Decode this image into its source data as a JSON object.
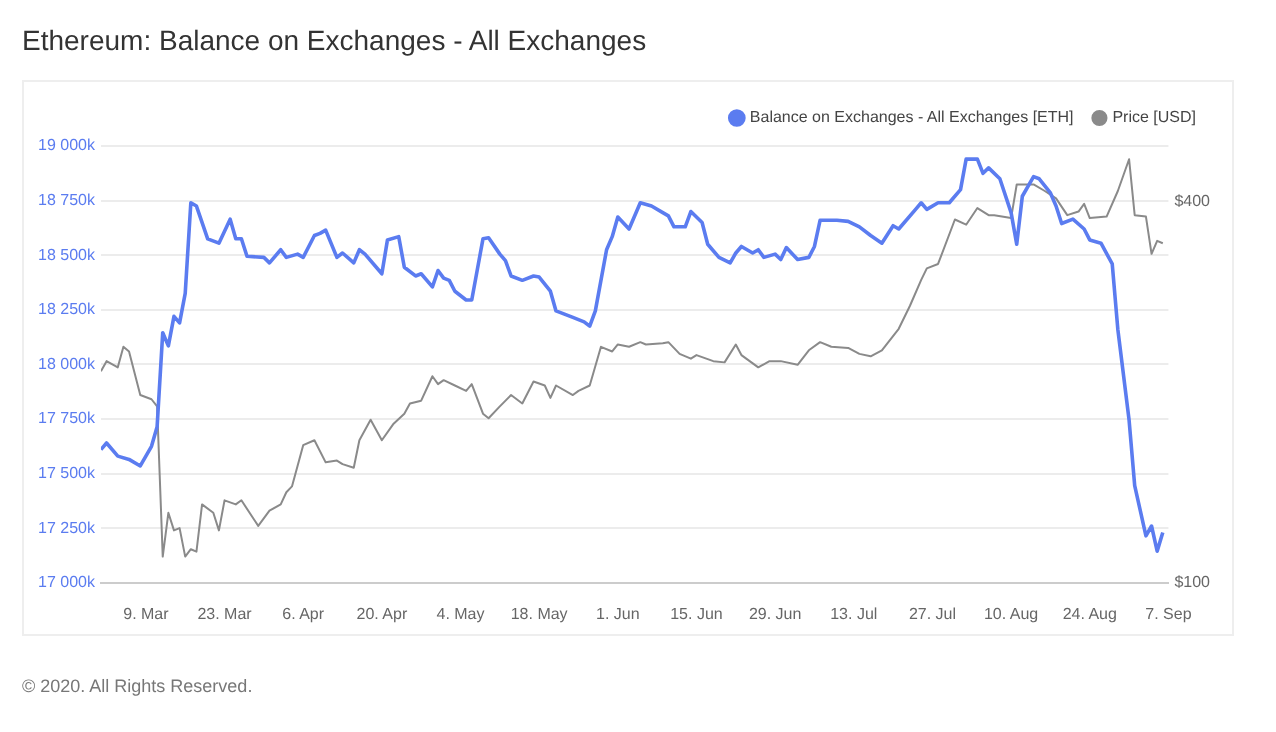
{
  "chart_data": {
    "type": "line",
    "title": "Ethereum: Balance on Exchanges - All Exchanges",
    "legend": "top right",
    "grid": "y",
    "marker": "none",
    "line_style": "solid",
    "log": "y2",
    "annotations": [
      "© 2020. All Rights Reserved."
    ],
    "xlim": [
      "2020-03-01",
      "2020-09-07"
    ],
    "xticks": [
      {
        "value": "2020-03-09",
        "label": "9. Mar"
      },
      {
        "value": "2020-03-23",
        "label": "23. Mar"
      },
      {
        "value": "2020-04-06",
        "label": "6. Apr"
      },
      {
        "value": "2020-04-20",
        "label": "20. Apr"
      },
      {
        "value": "2020-05-04",
        "label": "4. May"
      },
      {
        "value": "2020-05-18",
        "label": "18. May"
      },
      {
        "value": "2020-06-01",
        "label": "1. Jun"
      },
      {
        "value": "2020-06-15",
        "label": "15. Jun"
      },
      {
        "value": "2020-06-29",
        "label": "29. Jun"
      },
      {
        "value": "2020-07-13",
        "label": "13. Jul"
      },
      {
        "value": "2020-07-27",
        "label": "27. Jul"
      },
      {
        "value": "2020-08-10",
        "label": "10. Aug"
      },
      {
        "value": "2020-08-24",
        "label": "24. Aug"
      },
      {
        "value": "2020-09-07",
        "label": "7. Sep"
      }
    ],
    "ylim": [
      17000000,
      19000000
    ],
    "yticks": [
      {
        "value": 17000000,
        "label": "17 000k"
      },
      {
        "value": 17250000,
        "label": "17 250k"
      },
      {
        "value": 17500000,
        "label": "17 500k"
      },
      {
        "value": 17750000,
        "label": "17 750k"
      },
      {
        "value": 18000000,
        "label": "18 000k"
      },
      {
        "value": 18250000,
        "label": "18 250k"
      },
      {
        "value": 18500000,
        "label": "18 500k"
      },
      {
        "value": 18750000,
        "label": "18 750k"
      },
      {
        "value": 19000000,
        "label": "19 000k"
      }
    ],
    "y2lim": [
      100,
      490
    ],
    "y2ticks": [
      {
        "value": 100,
        "label": "$100"
      },
      {
        "value": 400,
        "label": "$400"
      }
    ],
    "series": [
      {
        "name": "Balance on Exchanges - All Exchanges [ETH]",
        "color": "#5b7cf0",
        "x": [
          "2020-03-01",
          "2020-03-02",
          "2020-03-04",
          "2020-03-06",
          "2020-03-08",
          "2020-03-09",
          "2020-03-10",
          "2020-03-11",
          "2020-03-12",
          "2020-03-13",
          "2020-03-14",
          "2020-03-15",
          "2020-03-16",
          "2020-03-17",
          "2020-03-18",
          "2020-03-20",
          "2020-03-22",
          "2020-03-24",
          "2020-03-25",
          "2020-03-26",
          "2020-03-27",
          "2020-03-30",
          "2020-03-31",
          "2020-04-02",
          "2020-04-03",
          "2020-04-05",
          "2020-04-06",
          "2020-04-08",
          "2020-04-09",
          "2020-04-10",
          "2020-04-12",
          "2020-04-13",
          "2020-04-15",
          "2020-04-16",
          "2020-04-17",
          "2020-04-20",
          "2020-04-21",
          "2020-04-23",
          "2020-04-24",
          "2020-04-26",
          "2020-04-27",
          "2020-04-29",
          "2020-04-30",
          "2020-05-01",
          "2020-05-02",
          "2020-05-03",
          "2020-05-05",
          "2020-05-06",
          "2020-05-08",
          "2020-05-09",
          "2020-05-11",
          "2020-05-12",
          "2020-05-13",
          "2020-05-15",
          "2020-05-17",
          "2020-05-18",
          "2020-05-20",
          "2020-05-21",
          "2020-05-24",
          "2020-05-26",
          "2020-05-27",
          "2020-05-28",
          "2020-05-30",
          "2020-05-31",
          "2020-06-01",
          "2020-06-03",
          "2020-06-05",
          "2020-06-07",
          "2020-06-09",
          "2020-06-10",
          "2020-06-11",
          "2020-06-13",
          "2020-06-14",
          "2020-06-16",
          "2020-06-17",
          "2020-06-19",
          "2020-06-21",
          "2020-06-22",
          "2020-06-23",
          "2020-06-25",
          "2020-06-26",
          "2020-06-27",
          "2020-06-29",
          "2020-06-30",
          "2020-07-01",
          "2020-07-03",
          "2020-07-05",
          "2020-07-06",
          "2020-07-07",
          "2020-07-10",
          "2020-07-12",
          "2020-07-14",
          "2020-07-16",
          "2020-07-18",
          "2020-07-20",
          "2020-07-21",
          "2020-07-24",
          "2020-07-25",
          "2020-07-26",
          "2020-07-28",
          "2020-07-30",
          "2020-08-01",
          "2020-08-02",
          "2020-08-04",
          "2020-08-05",
          "2020-08-06",
          "2020-08-08",
          "2020-08-10",
          "2020-08-11",
          "2020-08-12",
          "2020-08-14",
          "2020-08-15",
          "2020-08-17",
          "2020-08-18",
          "2020-08-19",
          "2020-08-21",
          "2020-08-23",
          "2020-08-24",
          "2020-08-26",
          "2020-08-28",
          "2020-08-29",
          "2020-08-31",
          "2020-09-01",
          "2020-09-03",
          "2020-09-04",
          "2020-09-05",
          "2020-09-06"
        ],
        "values": [
          17610000,
          17640000,
          17580000,
          17565000,
          17535000,
          17580000,
          17625000,
          17715000,
          18145000,
          18085000,
          18220000,
          18190000,
          18325000,
          18740000,
          18725000,
          18575000,
          18555000,
          18665000,
          18575000,
          18575000,
          18495000,
          18490000,
          18465000,
          18525000,
          18490000,
          18505000,
          18490000,
          18590000,
          18600000,
          18615000,
          18490000,
          18510000,
          18465000,
          18525000,
          18505000,
          18415000,
          18570000,
          18585000,
          18445000,
          18405000,
          18415000,
          18355000,
          18430000,
          18395000,
          18385000,
          18335000,
          18295000,
          18295000,
          18575000,
          18580000,
          18505000,
          18475000,
          18405000,
          18385000,
          18405000,
          18400000,
          18335000,
          18245000,
          18215000,
          18195000,
          18175000,
          18245000,
          18525000,
          18585000,
          18675000,
          18620000,
          18740000,
          18725000,
          18695000,
          18680000,
          18630000,
          18630000,
          18700000,
          18650000,
          18550000,
          18490000,
          18465000,
          18510000,
          18540000,
          18510000,
          18525000,
          18490000,
          18505000,
          18480000,
          18535000,
          18480000,
          18490000,
          18540000,
          18660000,
          18660000,
          18655000,
          18630000,
          18590000,
          18555000,
          18635000,
          18620000,
          18710000,
          18740000,
          18710000,
          18740000,
          18740000,
          18800000,
          18940000,
          18940000,
          18875000,
          18900000,
          18850000,
          18695000,
          18550000,
          18770000,
          18860000,
          18850000,
          18785000,
          18725000,
          18645000,
          18665000,
          18620000,
          18570000,
          18555000,
          18460000,
          18160000,
          17745000,
          17445000,
          17215000,
          17260000,
          17145000,
          17230000
        ]
      },
      {
        "name": "Price [USD]",
        "color": "#8a8a8a",
        "axis": "y2",
        "x": [
          "2020-03-01",
          "2020-03-02",
          "2020-03-04",
          "2020-03-05",
          "2020-03-06",
          "2020-03-08",
          "2020-03-10",
          "2020-03-11",
          "2020-03-12",
          "2020-03-13",
          "2020-03-14",
          "2020-03-15",
          "2020-03-16",
          "2020-03-17",
          "2020-03-18",
          "2020-03-19",
          "2020-03-21",
          "2020-03-22",
          "2020-03-23",
          "2020-03-25",
          "2020-03-26",
          "2020-03-29",
          "2020-03-31",
          "2020-04-02",
          "2020-04-03",
          "2020-04-04",
          "2020-04-06",
          "2020-04-08",
          "2020-04-10",
          "2020-04-12",
          "2020-04-13",
          "2020-04-15",
          "2020-04-16",
          "2020-04-18",
          "2020-04-20",
          "2020-04-22",
          "2020-04-24",
          "2020-04-25",
          "2020-04-27",
          "2020-04-29",
          "2020-04-30",
          "2020-05-01",
          "2020-05-03",
          "2020-05-05",
          "2020-05-06",
          "2020-05-08",
          "2020-05-09",
          "2020-05-11",
          "2020-05-13",
          "2020-05-15",
          "2020-05-17",
          "2020-05-19",
          "2020-05-20",
          "2020-05-21",
          "2020-05-24",
          "2020-05-25",
          "2020-05-27",
          "2020-05-29",
          "2020-05-31",
          "2020-06-01",
          "2020-06-03",
          "2020-06-05",
          "2020-06-06",
          "2020-06-09",
          "2020-06-10",
          "2020-06-12",
          "2020-06-14",
          "2020-06-15",
          "2020-06-18",
          "2020-06-20",
          "2020-06-22",
          "2020-06-23",
          "2020-06-26",
          "2020-06-28",
          "2020-06-30",
          "2020-07-03",
          "2020-07-05",
          "2020-07-07",
          "2020-07-09",
          "2020-07-12",
          "2020-07-14",
          "2020-07-16",
          "2020-07-18",
          "2020-07-21",
          "2020-07-23",
          "2020-07-25",
          "2020-07-26",
          "2020-07-28",
          "2020-07-31",
          "2020-08-02",
          "2020-08-04",
          "2020-08-06",
          "2020-08-07",
          "2020-08-10",
          "2020-08-11",
          "2020-08-14",
          "2020-08-16",
          "2020-08-18",
          "2020-08-20",
          "2020-08-22",
          "2020-08-23",
          "2020-08-24",
          "2020-08-27",
          "2020-08-29",
          "2020-08-31",
          "2020-09-01",
          "2020-09-03",
          "2020-09-04",
          "2020-09-05",
          "2020-09-06"
        ],
        "values": [
          216,
          224,
          219,
          236,
          232,
          198,
          195,
          190,
          110,
          129,
          121,
          122,
          110,
          113,
          112,
          133,
          129,
          121,
          135,
          133,
          135,
          123,
          130,
          133,
          139,
          142,
          165,
          168,
          155,
          156,
          154,
          152,
          168,
          181,
          168,
          178,
          185,
          192,
          194,
          212,
          206,
          209,
          205,
          201,
          206,
          185,
          182,
          190,
          198,
          192,
          208,
          205,
          196,
          205,
          198,
          201,
          205,
          236,
          232,
          238,
          236,
          240,
          238,
          239,
          240,
          230,
          226,
          229,
          224,
          223,
          238,
          229,
          219,
          224,
          224,
          221,
          233,
          240,
          236,
          235,
          230,
          228,
          233,
          252,
          274,
          301,
          314,
          319,
          375,
          368,
          391,
          381,
          381,
          377,
          426,
          426,
          416,
          405,
          381,
          386,
          397,
          377,
          379,
          416,
          467,
          381,
          379,
          331,
          347,
          344
        ]
      }
    ]
  }
}
